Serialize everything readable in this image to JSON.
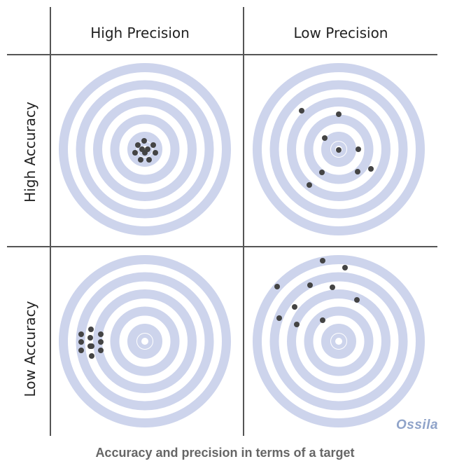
{
  "headers": {
    "high_precision": "High Precision",
    "low_precision": "Low Precision",
    "high_accuracy": "High Accuracy",
    "low_accuracy": "Low Accuracy"
  },
  "caption": "Accuracy and precision in terms of a target",
  "logo_text": "Ossila",
  "colors": {
    "ring": "#cdd4ec",
    "dot": "#444444",
    "grid": "#555555",
    "caption": "#666666",
    "logo": "#8fa3c9"
  },
  "targets": [
    {
      "id": "high-accuracy-high-precision",
      "rings": 5,
      "hits": 10
    },
    {
      "id": "high-accuracy-low-precision",
      "rings": 5,
      "hits": 9
    },
    {
      "id": "low-accuracy-high-precision",
      "rings": 5,
      "hits": 11
    },
    {
      "id": "low-accuracy-low-precision",
      "rings": 5,
      "hits": 10
    }
  ]
}
